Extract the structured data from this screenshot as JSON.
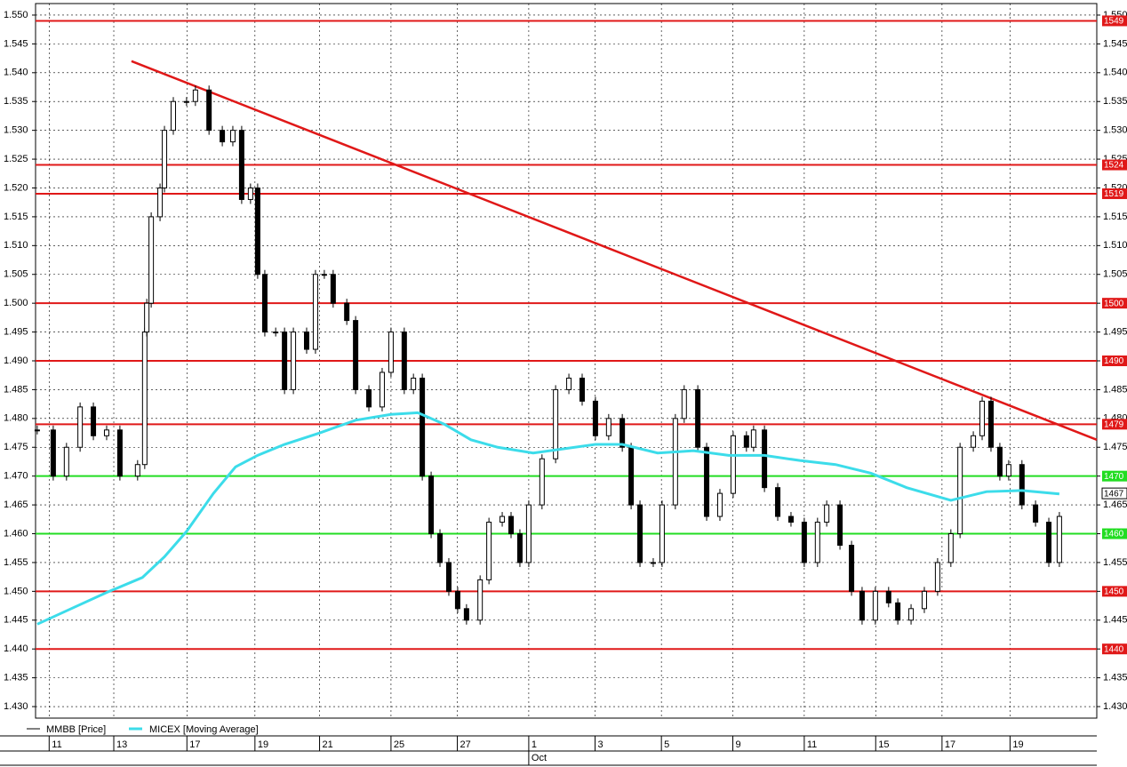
{
  "chart_data": {
    "type": "candlestick",
    "series": [
      {
        "name": "MMBB [Price]",
        "color": "#000000",
        "x": [
          0.05,
          0.52,
          0.91,
          1.31,
          1.7,
          2.09,
          2.48,
          3.0,
          3.21,
          3.27,
          3.4,
          3.66,
          3.79,
          4.05,
          4.44,
          4.7,
          5.1,
          5.49,
          5.8,
          6.06,
          6.32,
          6.53,
          6.74,
          7.06,
          7.32,
          7.58,
          7.97,
          8.23,
          8.49,
          8.75,
          9.15,
          9.41,
          9.8,
          10.19,
          10.45,
          10.84,
          11.11,
          11.37,
          11.63,
          11.89,
          12.15,
          12.41,
          12.67,
          13.07,
          13.33,
          13.72,
          13.98,
          14.24,
          14.5,
          14.89,
          15.29,
          15.68,
          16.07,
          16.46,
          16.85,
          17.25,
          17.51,
          17.77,
          18.16,
          18.42,
          18.81,
          19.07,
          19.47,
          19.73,
          20.12,
          20.51,
          20.9,
          21.11,
          21.43,
          21.82,
          22.21,
          22.6,
          22.99,
          23.26,
          23.65,
          23.99,
          24.3,
          24.69,
          25.08,
          25.35,
          25.74,
          26.13,
          26.52,
          26.91,
          27.18,
          27.57,
          27.83,
          28.09,
          28.35,
          28.61,
          29.0,
          29.4,
          29.79,
          30.1
        ],
        "values": [
          1.478,
          1.47,
          1.475,
          1.482,
          1.477,
          1.478,
          1.47,
          1.472,
          1.495,
          1.5,
          1.515,
          1.52,
          1.53,
          1.535,
          1.535,
          1.537,
          1.53,
          1.528,
          1.53,
          1.518,
          1.52,
          1.505,
          1.495,
          1.495,
          1.485,
          1.495,
          1.492,
          1.505,
          1.505,
          1.5,
          1.497,
          1.485,
          1.482,
          1.488,
          1.495,
          1.485,
          1.487,
          1.47,
          1.46,
          1.455,
          1.45,
          1.447,
          1.445,
          1.452,
          1.462,
          1.463,
          1.46,
          1.455,
          1.465,
          1.473,
          1.485,
          1.487,
          1.483,
          1.477,
          1.48,
          1.475,
          1.465,
          1.455,
          1.455,
          1.465,
          1.48,
          1.485,
          1.475,
          1.463,
          1.467,
          1.477,
          1.475,
          1.478,
          1.468,
          1.463,
          1.462,
          1.455,
          1.462,
          1.465,
          1.458,
          1.45,
          1.445,
          1.45,
          1.448,
          1.445,
          1.447,
          1.45,
          1.455,
          1.46,
          1.475,
          1.477,
          1.483,
          1.475,
          1.47,
          1.472,
          1.465,
          1.462,
          1.455,
          1.463
        ]
      },
      {
        "name": "MICEX [Moving Average]",
        "color": "#3cdcea",
        "x": [
          0.05,
          1.05,
          2.09,
          3.14,
          3.79,
          4.44,
          5.23,
          5.88,
          6.53,
          7.32,
          8.36,
          9.41,
          10.45,
          11.24,
          12.02,
          12.8,
          13.59,
          14.63,
          16.46,
          17.25,
          18.29,
          19.34,
          20.38,
          21.43,
          22.47,
          23.52,
          24.56,
          25.61,
          26.91,
          27.96,
          29.0,
          30.1
        ],
        "values": [
          1.4443,
          1.447,
          1.4498,
          1.4524,
          1.456,
          1.4604,
          1.467,
          1.4716,
          1.4736,
          1.4755,
          1.4775,
          1.4797,
          1.4807,
          1.481,
          1.479,
          1.4763,
          1.475,
          1.474,
          1.4755,
          1.4755,
          1.474,
          1.4744,
          1.4736,
          1.4736,
          1.4727,
          1.472,
          1.4705,
          1.468,
          1.4658,
          1.4673,
          1.4675,
          1.4669
        ]
      }
    ],
    "trend_line": {
      "x": [
        2.82,
        31.2
      ],
      "values": [
        1.542,
        1.4763
      ],
      "color": "#e01818"
    },
    "levels": [
      {
        "value": 1.549,
        "label": "1549",
        "color": "#e01818"
      },
      {
        "value": 1.524,
        "label": "1524",
        "color": "#e01818"
      },
      {
        "value": 1.519,
        "label": "1519",
        "color": "#e01818"
      },
      {
        "value": 1.5,
        "label": "1500",
        "color": "#e01818"
      },
      {
        "value": 1.49,
        "label": "1490",
        "color": "#e01818"
      },
      {
        "value": 1.479,
        "label": "1479",
        "color": "#e01818"
      },
      {
        "value": 1.47,
        "label": "1470",
        "color": "#22dd22"
      },
      {
        "value": 1.46,
        "label": "1460",
        "color": "#22dd22"
      },
      {
        "value": 1.45,
        "label": "1450",
        "color": "#e01818"
      },
      {
        "value": 1.44,
        "label": "1440",
        "color": "#e01818"
      }
    ],
    "last_price": {
      "value": 1.467,
      "label": "1467"
    },
    "xlim": [
      0,
      31.2
    ],
    "ylim": [
      1.428,
      1.552
    ],
    "xticks": [
      {
        "value": 0.4,
        "label": "11"
      },
      {
        "value": 2.3,
        "label": "13"
      },
      {
        "value": 4.45,
        "label": "17"
      },
      {
        "value": 6.45,
        "label": "19"
      },
      {
        "value": 8.35,
        "label": "21"
      },
      {
        "value": 10.45,
        "label": "25"
      },
      {
        "value": 12.4,
        "label": "27"
      },
      {
        "value": 14.5,
        "label": "1"
      },
      {
        "value": 16.45,
        "label": "3"
      },
      {
        "value": 18.4,
        "label": "5"
      },
      {
        "value": 20.5,
        "label": "9"
      },
      {
        "value": 22.6,
        "label": "11"
      },
      {
        "value": 24.7,
        "label": "15"
      },
      {
        "value": 26.65,
        "label": "17"
      },
      {
        "value": 28.65,
        "label": "19"
      }
    ],
    "month_labels": [
      {
        "value": 14.5,
        "label": "Oct"
      }
    ],
    "yticks": [
      {
        "value": 1.43,
        "label": "1.430"
      },
      {
        "value": 1.435,
        "label": "1.435"
      },
      {
        "value": 1.44,
        "label": "1.440"
      },
      {
        "value": 1.445,
        "label": "1.445"
      },
      {
        "value": 1.45,
        "label": "1.450"
      },
      {
        "value": 1.455,
        "label": "1.455"
      },
      {
        "value": 1.46,
        "label": "1.460"
      },
      {
        "value": 1.465,
        "label": "1.465"
      },
      {
        "value": 1.47,
        "label": "1.470"
      },
      {
        "value": 1.475,
        "label": "1.475"
      },
      {
        "value": 1.48,
        "label": "1.480"
      },
      {
        "value": 1.485,
        "label": "1.485"
      },
      {
        "value": 1.49,
        "label": "1.490"
      },
      {
        "value": 1.495,
        "label": "1.495"
      },
      {
        "value": 1.5,
        "label": "1.500"
      },
      {
        "value": 1.505,
        "label": "1.505"
      },
      {
        "value": 1.51,
        "label": "1.510"
      },
      {
        "value": 1.515,
        "label": "1.515"
      },
      {
        "value": 1.52,
        "label": "1.520"
      },
      {
        "value": 1.525,
        "label": "1.525"
      },
      {
        "value": 1.53,
        "label": "1.530"
      },
      {
        "value": 1.535,
        "label": "1.535"
      },
      {
        "value": 1.54,
        "label": "1.540"
      },
      {
        "value": 1.545,
        "label": "1.545"
      },
      {
        "value": 1.55,
        "label": "1.550"
      }
    ],
    "grid": true
  }
}
